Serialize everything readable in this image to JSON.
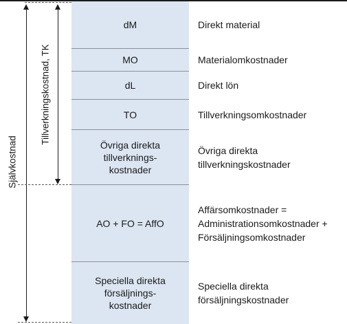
{
  "brackets": {
    "outer_label": "Självkostnad",
    "inner_label": "Tillverkningskostnad, TK"
  },
  "rows": [
    {
      "code_lines": [
        "dM"
      ],
      "desc_lines": [
        "Direkt material"
      ]
    },
    {
      "code_lines": [
        "MO"
      ],
      "desc_lines": [
        "Materialomkostnader"
      ]
    },
    {
      "code_lines": [
        "dL"
      ],
      "desc_lines": [
        "Direkt lön"
      ]
    },
    {
      "code_lines": [
        "TO"
      ],
      "desc_lines": [
        "Tillverkningsomkostnader"
      ]
    },
    {
      "code_lines": [
        "Övriga direkta",
        "tillverknings-",
        "kostnader"
      ],
      "desc_lines": [
        "Övriga direkta",
        "tillverkningskostnader"
      ]
    },
    {
      "code_lines": [
        "AO + FO = AffO"
      ],
      "desc_lines": [
        "Affärsomkostnader =",
        "Administrationsomkostnader +",
        "Försäljningsomkostnader"
      ]
    },
    {
      "code_lines": [
        "Speciella direkta",
        "försäljnings-",
        "kostnader"
      ],
      "desc_lines": [
        "Speciella direkta",
        "försäljningskostnader"
      ]
    }
  ],
  "colors": {
    "column_fill": "#dce6f2",
    "separator": "#8a8f96",
    "ink": "#1a1a1a"
  }
}
